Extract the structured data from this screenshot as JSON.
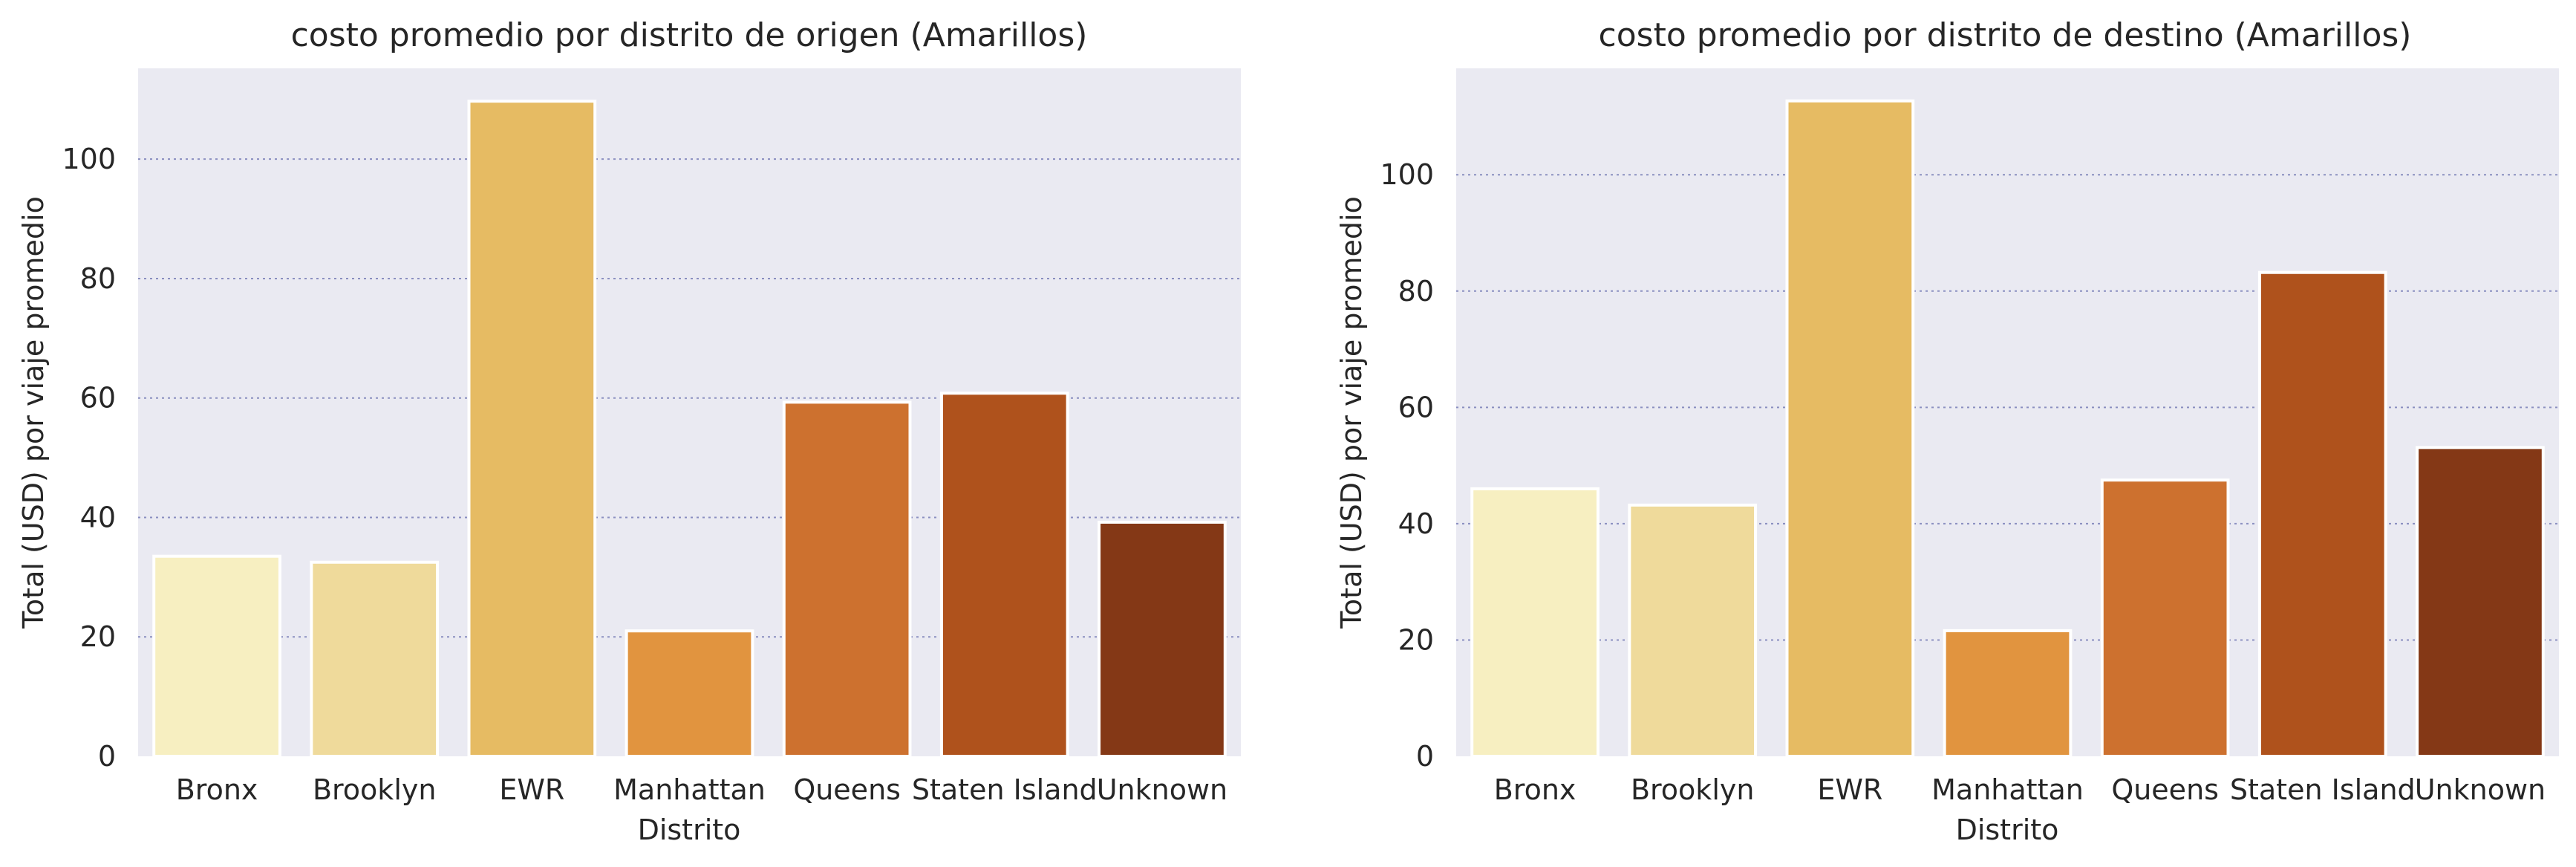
{
  "chart_data": [
    {
      "type": "bar",
      "title": "costo promedio por distrito de origen (Amarillos)",
      "xlabel": "Distrito",
      "ylabel": "Total (USD) por viaje promedio",
      "categories": [
        "Bronx",
        "Brooklyn",
        "EWR",
        "Manhattan",
        "Queens",
        "Staten Island",
        "Unknown"
      ],
      "values": [
        33.5,
        32.5,
        109.7,
        21.0,
        59.3,
        60.8,
        39.2
      ],
      "yticks": [
        0,
        20,
        40,
        60,
        80,
        100
      ],
      "ylim": [
        0,
        115.2
      ],
      "grid": true,
      "colors": [
        "#f7efc1",
        "#efda9b",
        "#e6bb63",
        "#e1943f",
        "#cd712f",
        "#af521c",
        "#843816"
      ]
    },
    {
      "type": "bar",
      "title": "costo promedio por distrito de destino (Amarillos)",
      "xlabel": "Distrito",
      "ylabel": "Total (USD) por viaje promedio",
      "categories": [
        "Bronx",
        "Brooklyn",
        "EWR",
        "Manhattan",
        "Queens",
        "Staten Island",
        "Unknown"
      ],
      "values": [
        46.0,
        43.2,
        112.7,
        21.6,
        47.5,
        83.2,
        53.1
      ],
      "yticks": [
        0,
        20,
        40,
        60,
        80,
        100
      ],
      "ylim": [
        0,
        118.3
      ],
      "grid": true,
      "colors": [
        "#f7efc1",
        "#efda9b",
        "#e6bb63",
        "#e1943f",
        "#cd712f",
        "#af521c",
        "#843816"
      ]
    }
  ]
}
